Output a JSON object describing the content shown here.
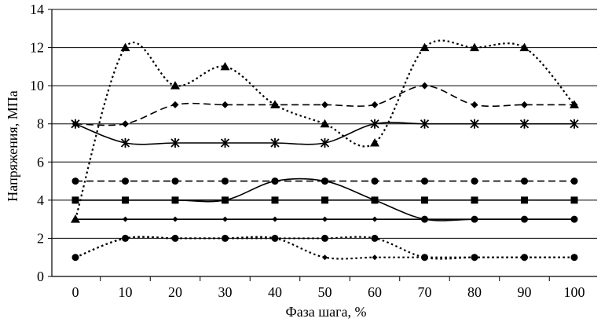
{
  "chart_data": {
    "type": "line",
    "title": "",
    "xlabel": "Фаза шага, %",
    "ylabel": "Напряжения, МПа",
    "x": [
      0,
      10,
      20,
      30,
      40,
      50,
      60,
      70,
      80,
      90,
      100
    ],
    "x_tick_labels": [
      "0",
      "10",
      "20",
      "30",
      "40",
      "50",
      "60",
      "70",
      "80",
      "90",
      "100"
    ],
    "y_tick_labels": [
      "0",
      "2",
      "4",
      "6",
      "8",
      "10",
      "12",
      "14"
    ],
    "xlim": [
      0,
      100
    ],
    "ylim": [
      0,
      14
    ],
    "grid": "horizontal",
    "legend": "none",
    "series": [
      {
        "values": [
          3,
          12,
          10,
          11,
          9,
          8,
          7,
          12,
          12,
          12,
          9
        ],
        "marker": "triangle",
        "line_style": "dotted",
        "smooth": true
      },
      {
        "values": [
          8,
          8,
          9,
          9,
          9,
          9,
          9,
          10,
          9,
          9,
          9
        ],
        "marker": "diamond",
        "line_style": "dashed",
        "smooth": true
      },
      {
        "values": [
          8,
          7,
          7,
          7,
          7,
          7,
          8,
          8,
          8,
          8,
          8
        ],
        "marker": "asterisk",
        "line_style": "solid",
        "smooth": true
      },
      {
        "values": [
          5,
          5,
          5,
          5,
          5,
          5,
          5,
          5,
          5,
          5,
          5
        ],
        "marker": "circle",
        "line_style": "dashed",
        "smooth": false
      },
      {
        "values": [
          4,
          4,
          4,
          4,
          5,
          5,
          4,
          3,
          3,
          3,
          3
        ],
        "marker": "circle",
        "line_style": "solid",
        "smooth": true
      },
      {
        "values": [
          4,
          4,
          4,
          4,
          4,
          4,
          4,
          4,
          4,
          4,
          4
        ],
        "marker": "square",
        "line_style": "solid",
        "smooth": false
      },
      {
        "values": [
          3,
          3,
          3,
          3,
          3,
          3,
          3,
          3,
          3,
          3,
          3
        ],
        "marker": "diamond-small",
        "line_style": "solid",
        "smooth": false
      },
      {
        "values": [
          1,
          2,
          2,
          2,
          2,
          2,
          2,
          1,
          1,
          1,
          1
        ],
        "marker": "circle",
        "line_style": "dotted",
        "smooth": true
      },
      {
        "values": [
          1,
          2,
          2,
          2,
          2,
          1,
          1,
          1,
          1,
          1,
          1
        ],
        "marker": "diamond-small",
        "line_style": "dotted",
        "smooth": true
      }
    ]
  }
}
